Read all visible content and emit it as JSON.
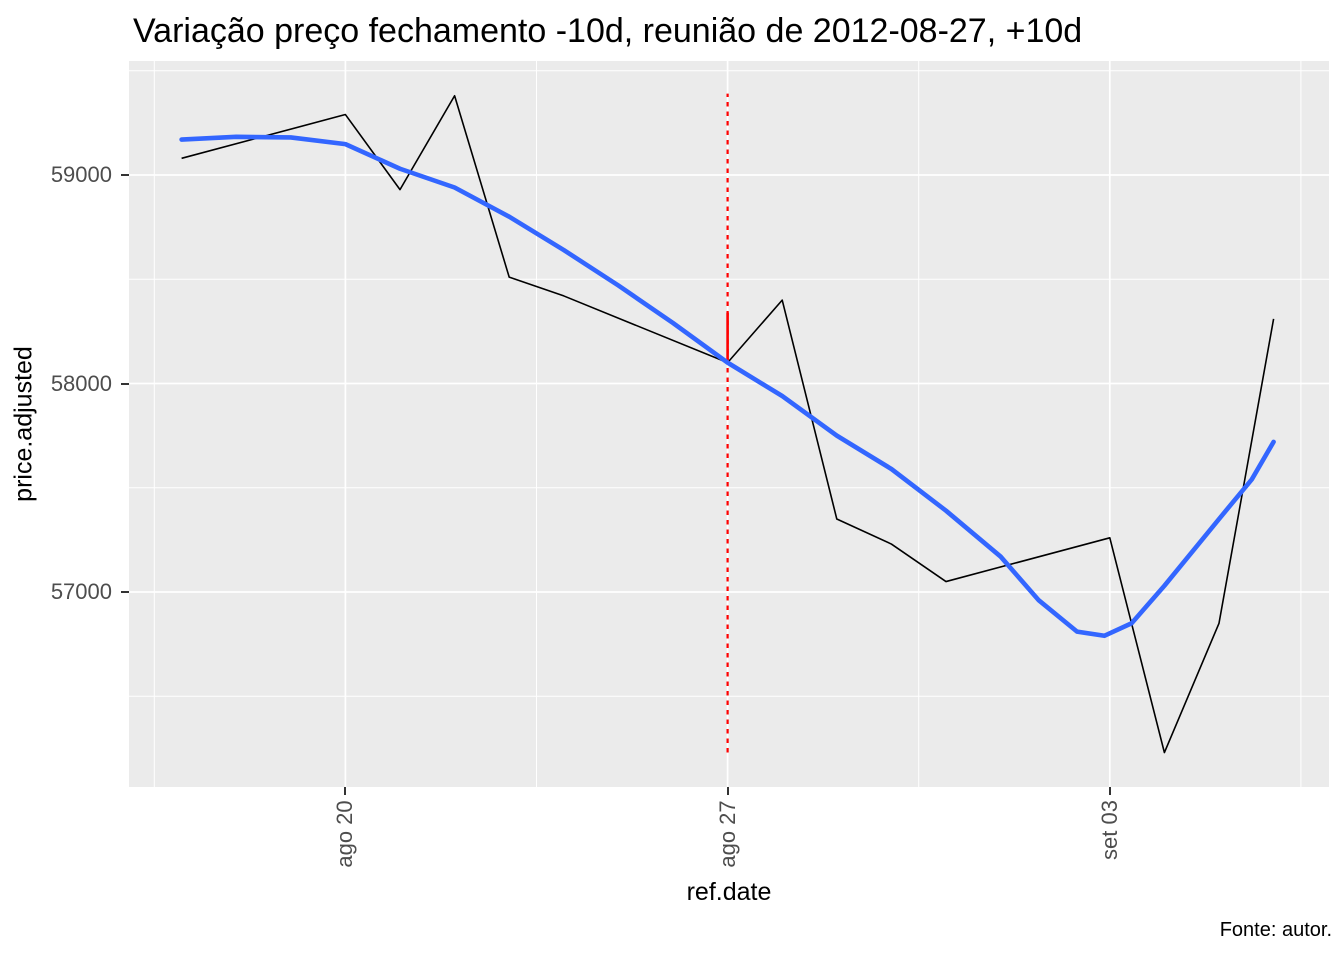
{
  "title": "Variação preço fechamento -10d, reunião de 2012-08-27, +10d",
  "caption": "Fonte: autor.",
  "colors": {
    "page_background": "#FFFFFF",
    "panel_background": "#EBEBEB",
    "gridline": "#FFFFFF",
    "tick_text": "#4D4D4D",
    "tick_mark": "#333333",
    "price_line": "#000000",
    "smooth_line": "#3366FF",
    "event_line": "#FF0000"
  },
  "chart_data": {
    "type": "line",
    "title": "Variação preço fechamento -10d, reunião de 2012-08-27, +10d",
    "xlabel": "ref.date",
    "ylabel": "price.adjusted",
    "legend": "none",
    "grid": "on",
    "x_day0_date": "2012-08-16",
    "xlim_days": [
      0,
      22
    ],
    "ylim": [
      56060,
      59550
    ],
    "x_ticks": [
      {
        "day": 4,
        "label": "ago 20"
      },
      {
        "day": 11,
        "label": "ago 27"
      },
      {
        "day": 18,
        "label": "set 03"
      }
    ],
    "x_minor_days": [
      0.5,
      7.5,
      14.5,
      21.5
    ],
    "y_ticks": [
      {
        "value": 59000,
        "label": "59000"
      },
      {
        "value": 58000,
        "label": "58000"
      },
      {
        "value": 57000,
        "label": "57000"
      }
    ],
    "y_minor": [
      59500,
      58500,
      57500,
      56500
    ],
    "series": [
      {
        "name": "price.adjusted",
        "geom": "line",
        "color": "#000000",
        "stroke_width": 1.6,
        "points": [
          {
            "date": "2012-08-17",
            "day": 1,
            "value": 59080
          },
          {
            "date": "2012-08-20",
            "day": 4,
            "value": 59290
          },
          {
            "date": "2012-08-21",
            "day": 5,
            "value": 58930
          },
          {
            "date": "2012-08-22",
            "day": 6,
            "value": 59380
          },
          {
            "date": "2012-08-23",
            "day": 7,
            "value": 58510
          },
          {
            "date": "2012-08-24",
            "day": 8,
            "value": 58420
          },
          {
            "date": "2012-08-27",
            "day": 11,
            "value": 58100
          },
          {
            "date": "2012-08-28",
            "day": 12,
            "value": 58400
          },
          {
            "date": "2012-08-29",
            "day": 13,
            "value": 57350
          },
          {
            "date": "2012-08-30",
            "day": 14,
            "value": 57230
          },
          {
            "date": "2012-08-31",
            "day": 15,
            "value": 57050
          },
          {
            "date": "2012-09-03",
            "day": 18,
            "value": 57260
          },
          {
            "date": "2012-09-04",
            "day": 19,
            "value": 56230
          },
          {
            "date": "2012-09-05",
            "day": 20,
            "value": 56850
          },
          {
            "date": "2012-09-06",
            "day": 21,
            "value": 58310
          }
        ]
      },
      {
        "name": "loess-smooth",
        "geom": "smooth",
        "color": "#3366FF",
        "stroke_width": 4.6,
        "points": [
          {
            "day": 1,
            "value": 59170
          },
          {
            "day": 2,
            "value": 59183
          },
          {
            "day": 3,
            "value": 59180
          },
          {
            "day": 4,
            "value": 59148
          },
          {
            "day": 5,
            "value": 59030
          },
          {
            "day": 6,
            "value": 58940
          },
          {
            "day": 7,
            "value": 58800
          },
          {
            "day": 8,
            "value": 58640
          },
          {
            "day": 9,
            "value": 58470
          },
          {
            "day": 10,
            "value": 58290
          },
          {
            "day": 11,
            "value": 58100
          },
          {
            "day": 12,
            "value": 57940
          },
          {
            "day": 13,
            "value": 57750
          },
          {
            "day": 14,
            "value": 57590
          },
          {
            "day": 15,
            "value": 57390
          },
          {
            "day": 16,
            "value": 57170
          },
          {
            "day": 16.7,
            "value": 56960
          },
          {
            "day": 17.4,
            "value": 56810
          },
          {
            "day": 17.9,
            "value": 56790
          },
          {
            "day": 18.4,
            "value": 56850
          },
          {
            "day": 19,
            "value": 57030
          },
          {
            "day": 20,
            "value": 57350
          },
          {
            "day": 20.6,
            "value": 57540
          },
          {
            "day": 21,
            "value": 57720
          }
        ]
      }
    ],
    "event_line": {
      "date": "2012-08-27",
      "day": 11,
      "color": "#FF0000",
      "dotted_segment": {
        "from": 56230,
        "to": 59390
      },
      "solid_segment": {
        "from": 58100,
        "to": 58340
      }
    }
  }
}
